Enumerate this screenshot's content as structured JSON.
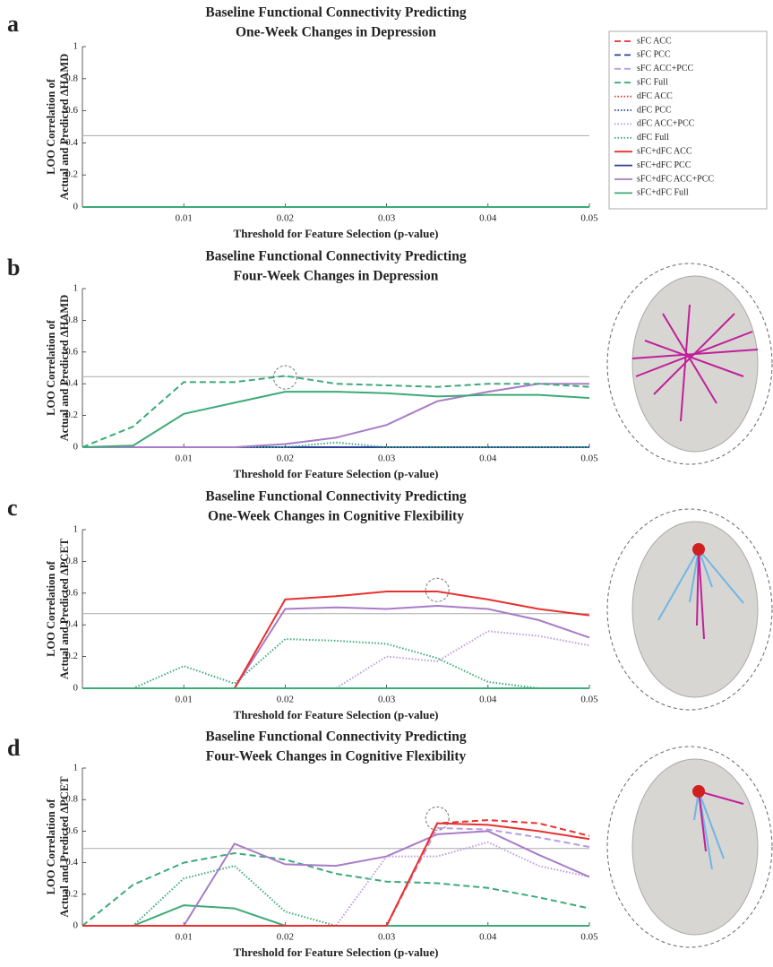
{
  "legend": [
    {
      "name": "sFC ACC",
      "color": "#e8312f",
      "style": "dashed"
    },
    {
      "name": "sFC PCC",
      "color": "#2a3e9c",
      "style": "dashed"
    },
    {
      "name": "sFC ACC+PCC",
      "color": "#b99be0",
      "style": "dashed"
    },
    {
      "name": "sFC Full",
      "color": "#3daa78",
      "style": "dashed"
    },
    {
      "name": "dFC ACC",
      "color": "#e8312f",
      "style": "dotted"
    },
    {
      "name": "dFC PCC",
      "color": "#2a3e9c",
      "style": "dotted"
    },
    {
      "name": "dFC ACC+PCC",
      "color": "#b99be0",
      "style": "dotted"
    },
    {
      "name": "dFC Full",
      "color": "#3daa78",
      "style": "dotted"
    },
    {
      "name": "sFC+dFC ACC",
      "color": "#e8312f",
      "style": "solid"
    },
    {
      "name": "sFC+dFC PCC",
      "color": "#2a3e9c",
      "style": "solid"
    },
    {
      "name": "sFC+dFC ACC+PCC",
      "color": "#a87cc8",
      "style": "solid"
    },
    {
      "name": "sFC+dFC Full",
      "color": "#3daa78",
      "style": "solid"
    }
  ],
  "chart_data": [
    {
      "type": "line",
      "panel": "a",
      "title": [
        "Baseline Functional Connectivity Predicting",
        "One-Week Changes in Depression"
      ],
      "y_label": [
        "LOO Correlation of",
        "Actual and Predicted ΔHAMD"
      ],
      "x_label": "Threshold for Feature Selection (p-value)",
      "x": [
        0,
        0.005,
        0.01,
        0.015,
        0.02,
        0.025,
        0.03,
        0.035,
        0.04,
        0.045,
        0.05
      ],
      "xlim": [
        0,
        0.05
      ],
      "xticks": [
        0.01,
        0.02,
        0.03,
        0.04,
        0.05
      ],
      "ylim": [
        0,
        1
      ],
      "yticks": [
        0,
        0.2,
        0.4,
        0.6,
        0.8,
        1
      ],
      "reference_line": 0.445,
      "series": [
        {
          "entry": 11,
          "values": [
            0,
            0,
            0,
            0,
            0,
            0,
            0,
            0,
            0,
            0,
            0
          ]
        }
      ]
    },
    {
      "type": "line",
      "panel": "b",
      "title": [
        "Baseline Functional Connectivity Predicting",
        "Four-Week Changes in Depression"
      ],
      "y_label": [
        "LOO Correlation of",
        "Actual and Predicted ΔHAMD"
      ],
      "x_label": "Threshold for Feature Selection (p-value)",
      "x": [
        0,
        0.005,
        0.01,
        0.015,
        0.02,
        0.025,
        0.03,
        0.035,
        0.04,
        0.045,
        0.05
      ],
      "xlim": [
        0,
        0.05
      ],
      "xticks": [
        0.01,
        0.02,
        0.03,
        0.04,
        0.05
      ],
      "ylim": [
        0,
        1
      ],
      "yticks": [
        0,
        0.2,
        0.4,
        0.6,
        0.8,
        1
      ],
      "reference_line": 0.445,
      "highlight": [
        0.02,
        0.44
      ],
      "series": [
        {
          "entry": 9,
          "values": [
            0,
            0,
            0,
            0,
            0,
            0,
            0,
            0,
            0,
            0,
            0
          ]
        },
        {
          "entry": 7,
          "values": [
            0,
            0,
            0,
            0,
            0,
            0.03,
            0,
            0,
            0,
            0,
            0
          ]
        },
        {
          "entry": 10,
          "values": [
            0,
            0,
            0,
            0,
            0.02,
            0.06,
            0.14,
            0.29,
            0.35,
            0.4,
            0.4
          ]
        },
        {
          "entry": 3,
          "values": [
            0,
            0.13,
            0.41,
            0.41,
            0.45,
            0.4,
            0.39,
            0.38,
            0.4,
            0.4,
            0.38
          ]
        },
        {
          "entry": 11,
          "values": [
            0,
            0.01,
            0.21,
            0.28,
            0.35,
            0.35,
            0.34,
            0.32,
            0.33,
            0.33,
            0.31
          ]
        }
      ]
    },
    {
      "type": "line",
      "panel": "c",
      "title": [
        "Baseline Functional Connectivity Predicting",
        "One-Week Changes in Cognitive Flexibility"
      ],
      "y_label": [
        "LOO Correlation of",
        "Actual and Predicted ΔPCET"
      ],
      "x_label": "Threshold for Feature Selection (p-value)",
      "x": [
        0,
        0.005,
        0.01,
        0.015,
        0.02,
        0.025,
        0.03,
        0.035,
        0.04,
        0.045,
        0.05
      ],
      "xlim": [
        0,
        0.05
      ],
      "xticks": [
        0.01,
        0.02,
        0.03,
        0.04,
        0.05
      ],
      "ylim": [
        0,
        1
      ],
      "yticks": [
        0,
        0.2,
        0.4,
        0.6,
        0.8,
        1
      ],
      "reference_line": 0.47,
      "highlight": [
        0.035,
        0.62
      ],
      "series": [
        {
          "entry": 7,
          "values": [
            0,
            0,
            0.14,
            0.03,
            0.31,
            0.3,
            0.28,
            0.19,
            0.04,
            0,
            0
          ]
        },
        {
          "entry": 6,
          "values": [
            0,
            0,
            0,
            0,
            0,
            0,
            0.2,
            0.17,
            0.36,
            0.33,
            0.27
          ]
        },
        {
          "entry": 10,
          "values": [
            0,
            0,
            0,
            0,
            0.5,
            0.51,
            0.5,
            0.52,
            0.5,
            0.43,
            0.32
          ]
        },
        {
          "entry": 8,
          "values": [
            0,
            0,
            0,
            0,
            0.56,
            0.58,
            0.61,
            0.61,
            0.56,
            0.5,
            0.46
          ]
        },
        {
          "entry": 11,
          "values": [
            0,
            0,
            0,
            0,
            0,
            0,
            0,
            0,
            0,
            0,
            0
          ]
        }
      ]
    },
    {
      "type": "line",
      "panel": "d",
      "title": [
        "Baseline Functional Connectivity Predicting",
        "Four-Week Changes in Cognitive Flexibility"
      ],
      "y_label": [
        "LOO Correlation of",
        "Actual and Predicted ΔPCET"
      ],
      "x_label": "Threshold for Feature Selection (p-value)",
      "x": [
        0,
        0.005,
        0.01,
        0.015,
        0.02,
        0.025,
        0.03,
        0.035,
        0.04,
        0.045,
        0.05
      ],
      "xlim": [
        0,
        0.05
      ],
      "xticks": [
        0.01,
        0.02,
        0.03,
        0.04,
        0.05
      ],
      "ylim": [
        0,
        1
      ],
      "yticks": [
        0,
        0.2,
        0.4,
        0.6,
        0.8,
        1
      ],
      "reference_line": 0.49,
      "highlight": [
        0.035,
        0.68
      ],
      "series": [
        {
          "entry": 9,
          "values": [
            null,
            null,
            0,
            0,
            0,
            null,
            null,
            null,
            null,
            null,
            null
          ]
        },
        {
          "entry": 3,
          "values": [
            0,
            0.26,
            0.4,
            0.46,
            0.42,
            0.33,
            0.28,
            0.27,
            0.24,
            0.18,
            0.11
          ]
        },
        {
          "entry": 7,
          "values": [
            0,
            0,
            0.3,
            0.38,
            0.09,
            0,
            0,
            0,
            0,
            0,
            0
          ]
        },
        {
          "entry": 11,
          "values": [
            0,
            0,
            0.13,
            0.11,
            0,
            0,
            0,
            0,
            0,
            0,
            0
          ]
        },
        {
          "entry": 6,
          "values": [
            0,
            0,
            0,
            0,
            0,
            0,
            0.44,
            0.44,
            0.53,
            0.38,
            0.31
          ]
        },
        {
          "entry": 10,
          "values": [
            0,
            0,
            0,
            0.52,
            0.39,
            0.38,
            0.44,
            0.58,
            0.6,
            0.45,
            0.31
          ]
        },
        {
          "entry": 2,
          "values": [
            0,
            0,
            0,
            0,
            0,
            0,
            0,
            0.62,
            0.61,
            0.56,
            0.5
          ]
        },
        {
          "entry": 0,
          "values": [
            0,
            0,
            0,
            0,
            0,
            0,
            0,
            0.65,
            0.67,
            0.65,
            0.57
          ]
        },
        {
          "entry": 8,
          "values": [
            0,
            0,
            0,
            0,
            0,
            0,
            0,
            0.65,
            0.64,
            0.6,
            0.55
          ]
        }
      ]
    }
  ]
}
